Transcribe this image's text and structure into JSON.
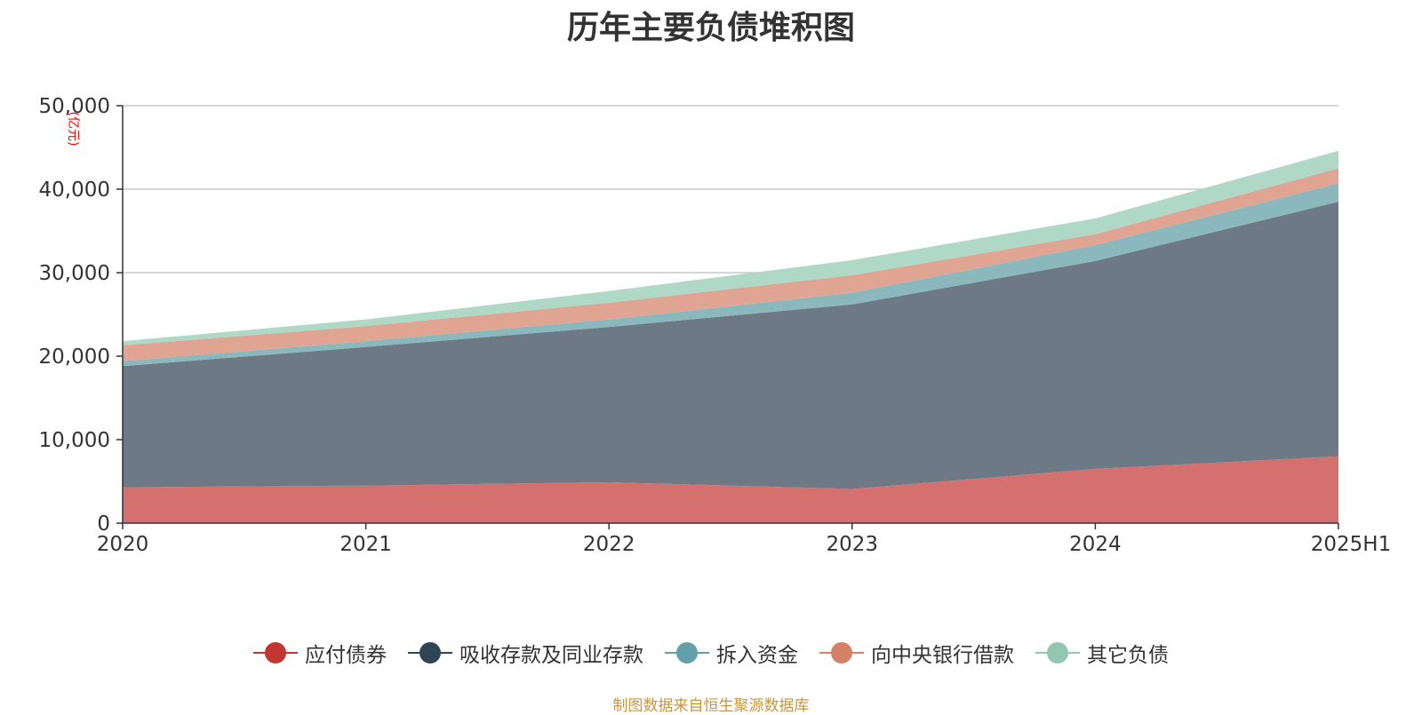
{
  "chart_data": {
    "type": "area",
    "stacked": true,
    "title": "历年主要负债堆积图",
    "unit_label": "(亿元)",
    "x": [
      "2020",
      "2021",
      "2022",
      "2023",
      "2024",
      "2025H1"
    ],
    "y_ticks": [
      "0",
      "10,000",
      "20,000",
      "30,000",
      "40,000",
      "50,000"
    ],
    "ylim": [
      0,
      50000
    ],
    "grid": true,
    "legend_position": "bottom",
    "series": [
      {
        "name": "应付债券",
        "color": "#c23531",
        "fill": "#d4706e",
        "values": [
          4300,
          4500,
          4900,
          4100,
          6500,
          8000
        ]
      },
      {
        "name": "吸收存款及同业存款",
        "color": "#2f4554",
        "fill": "#6d7a85",
        "values": [
          14500,
          16600,
          18600,
          22100,
          24900,
          30500
        ]
      },
      {
        "name": "拆入资金",
        "color": "#61a0a8",
        "fill": "#8ab8bc",
        "values": [
          600,
          700,
          900,
          1400,
          1900,
          2200
        ]
      },
      {
        "name": "向中央银行借款",
        "color": "#d48265",
        "fill": "#dfa592",
        "values": [
          1900,
          1800,
          2000,
          2100,
          1300,
          1800
        ]
      },
      {
        "name": "其它负债",
        "color": "#91c7ae",
        "fill": "#b0d8c6",
        "values": [
          500,
          800,
          1400,
          1800,
          1900,
          2100
        ]
      }
    ],
    "source": "制图数据来自恒生聚源数据库"
  }
}
